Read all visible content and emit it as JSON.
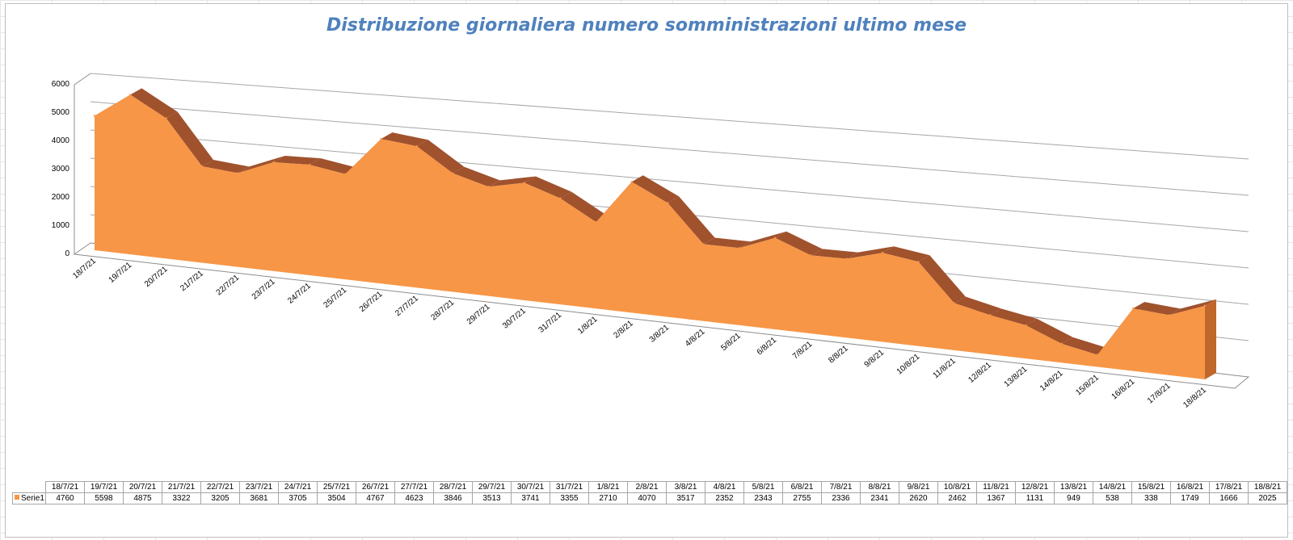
{
  "chart_data": {
    "type": "area",
    "title": "Distribuzione giornaliera numero somministrazioni ultimo mese",
    "categories": [
      "18/7/21",
      "19/7/21",
      "20/7/21",
      "21/7/21",
      "22/7/21",
      "23/7/21",
      "24/7/21",
      "25/7/21",
      "26/7/21",
      "27/7/21",
      "28/7/21",
      "29/7/21",
      "30/7/21",
      "31/7/21",
      "1/8/21",
      "2/8/21",
      "3/8/21",
      "4/8/21",
      "5/8/21",
      "6/8/21",
      "7/8/21",
      "8/8/21",
      "9/8/21",
      "10/8/21",
      "11/8/21",
      "12/8/21",
      "13/8/21",
      "14/8/21",
      "15/8/21",
      "16/8/21",
      "17/8/21",
      "18/8/21"
    ],
    "series": [
      {
        "name": "Serie1",
        "values": [
          4760,
          5598,
          4875,
          3322,
          3205,
          3681,
          3705,
          3504,
          4767,
          4623,
          3846,
          3513,
          3741,
          3355,
          2710,
          4070,
          3517,
          2352,
          2343,
          2755,
          2336,
          2341,
          2620,
          2462,
          1367,
          1131,
          949,
          538,
          338,
          1749,
          1666,
          2025
        ]
      }
    ],
    "ylim": [
      0,
      6000
    ],
    "yticks": [
      0,
      1000,
      2000,
      3000,
      4000,
      5000,
      6000
    ],
    "grid": true,
    "color": "#f79646",
    "side_color": "#a0522d",
    "style": "3d"
  }
}
